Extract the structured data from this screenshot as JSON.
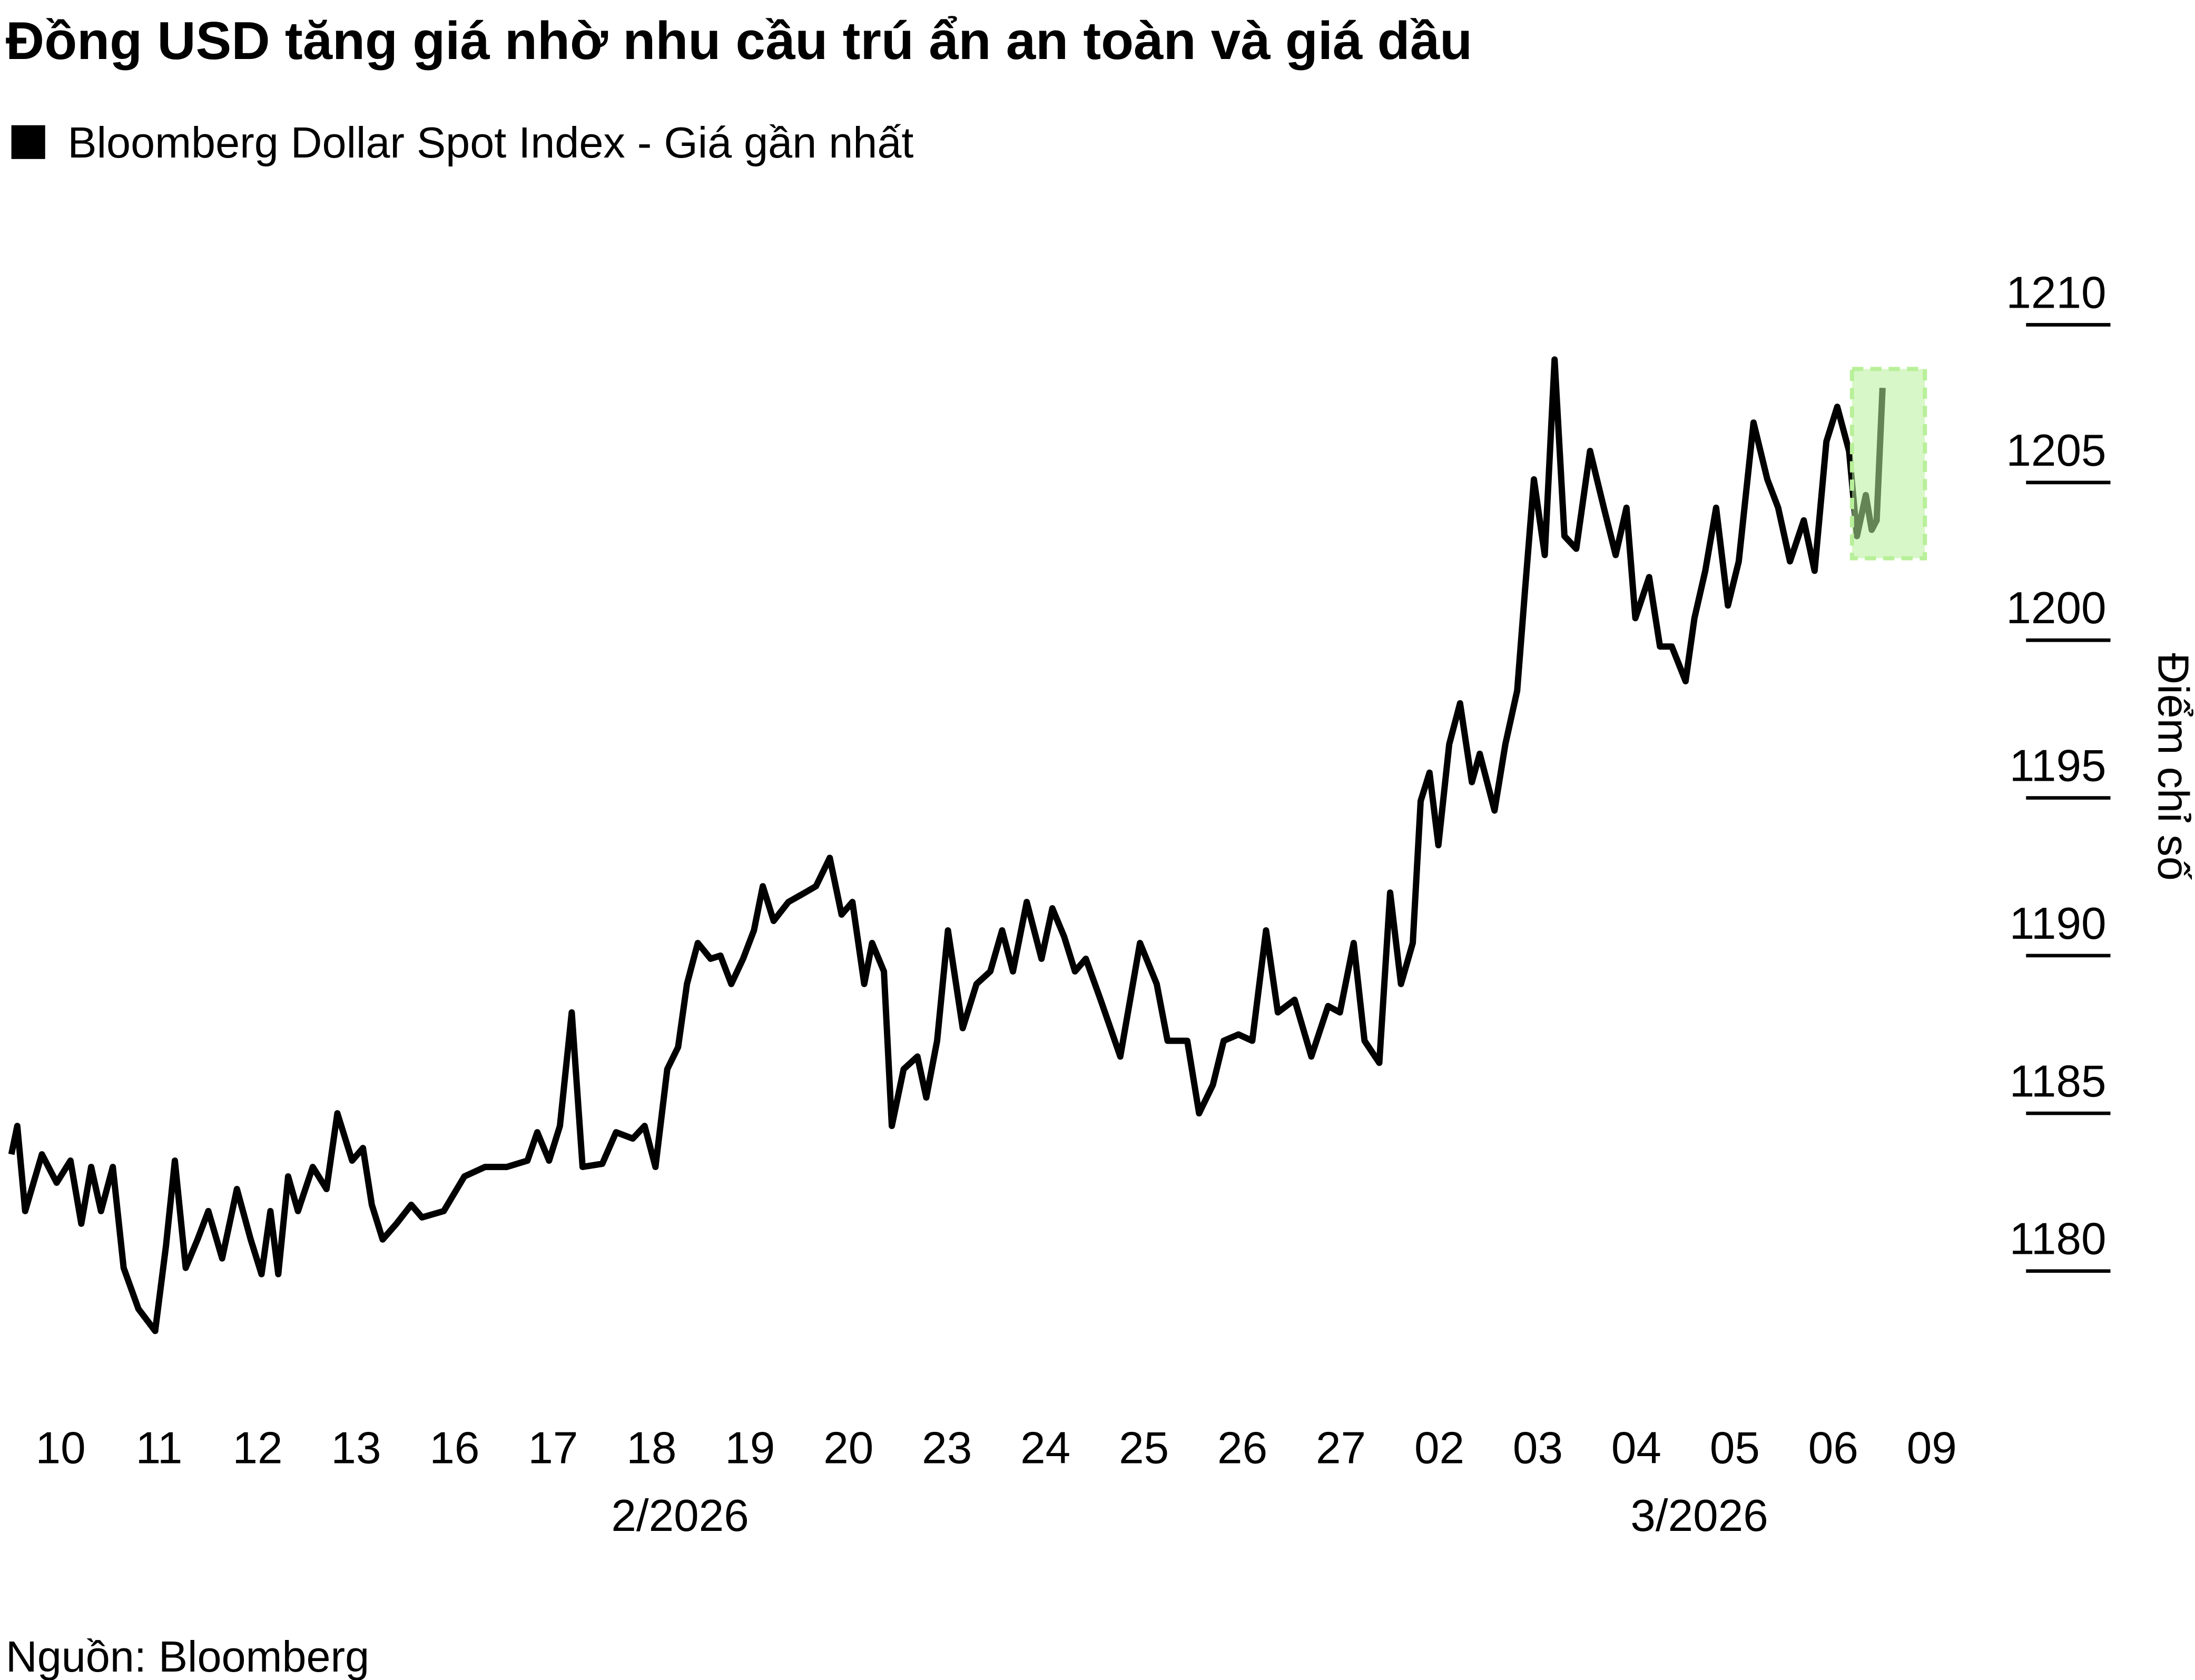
{
  "chart_data": {
    "type": "line",
    "title": "Đồng USD tăng giá nhờ nhu cầu trú ẩn an toàn và giá dầu",
    "y_label": "Điểm chỉ số",
    "source": "Nguồn: Bloomberg",
    "xlim": [
      0,
      20
    ],
    "xticks": [
      {
        "value": 0.5,
        "label": "10"
      },
      {
        "value": 1.5,
        "label": "11"
      },
      {
        "value": 2.5,
        "label": "12"
      },
      {
        "value": 3.5,
        "label": "13"
      },
      {
        "value": 4.5,
        "label": "16"
      },
      {
        "value": 5.5,
        "label": "17"
      },
      {
        "value": 6.5,
        "label": "18"
      },
      {
        "value": 7.5,
        "label": "19"
      },
      {
        "value": 8.5,
        "label": "20"
      },
      {
        "value": 9.5,
        "label": "23"
      },
      {
        "value": 10.5,
        "label": "24"
      },
      {
        "value": 11.5,
        "label": "25"
      },
      {
        "value": 12.5,
        "label": "26"
      },
      {
        "value": 13.5,
        "label": "27"
      },
      {
        "value": 14.5,
        "label": "02"
      },
      {
        "value": 15.5,
        "label": "03"
      },
      {
        "value": 16.5,
        "label": "04"
      },
      {
        "value": 17.5,
        "label": "05"
      },
      {
        "value": 18.5,
        "label": "06"
      },
      {
        "value": 19.5,
        "label": "09"
      }
    ],
    "ylim": [
      1176,
      1212
    ],
    "yticks": [
      1180,
      1185,
      1190,
      1195,
      1200,
      1205,
      1210
    ],
    "annotations": [
      {
        "text": "2/2026",
        "x": 6.79
      },
      {
        "text": "3/2026",
        "x": 17.14
      }
    ],
    "highlight": {
      "x": [
        18.69,
        19.43
      ],
      "y": [
        1202.6,
        1208.6
      ],
      "color": "#b8f09a"
    },
    "series": [
      {
        "name": "Bloomberg Dollar Spot Index - Giá gần nhất",
        "color": "#000000",
        "x": [
          0.0,
          0.06,
          0.14,
          0.31,
          0.46,
          0.6,
          0.71,
          0.81,
          0.91,
          1.03,
          1.14,
          1.29,
          1.46,
          1.57,
          1.66,
          1.77,
          1.89,
          2.0,
          2.14,
          2.29,
          2.43,
          2.54,
          2.63,
          2.71,
          2.81,
          2.91,
          3.06,
          3.2,
          3.31,
          3.46,
          3.57,
          3.66,
          3.77,
          3.91,
          4.06,
          4.17,
          4.39,
          4.6,
          4.81,
          5.03,
          5.24,
          5.34,
          5.46,
          5.57,
          5.69,
          5.8,
          6.0,
          6.14,
          6.31,
          6.43,
          6.54,
          6.66,
          6.77,
          6.86,
          6.97,
          7.1,
          7.2,
          7.31,
          7.43,
          7.54,
          7.63,
          7.74,
          7.89,
          8.06,
          8.17,
          8.31,
          8.43,
          8.54,
          8.66,
          8.74,
          8.86,
          8.94,
          9.06,
          9.2,
          9.29,
          9.4,
          9.51,
          9.66,
          9.8,
          9.94,
          10.06,
          10.17,
          10.31,
          10.46,
          10.57,
          10.69,
          10.8,
          10.91,
          11.06,
          11.26,
          11.46,
          11.63,
          11.74,
          11.94,
          12.06,
          12.2,
          12.31,
          12.46,
          12.6,
          12.74,
          12.86,
          13.03,
          13.2,
          13.37,
          13.49,
          13.63,
          13.74,
          13.89,
          14.0,
          14.11,
          14.23,
          14.31,
          14.4,
          14.49,
          14.6,
          14.71,
          14.83,
          14.91,
          15.06,
          15.17,
          15.29,
          15.37,
          15.46,
          15.57,
          15.67,
          15.77,
          15.89,
          16.03,
          16.17,
          16.29,
          16.4,
          16.49,
          16.63,
          16.74,
          16.86,
          17.0,
          17.09,
          17.2,
          17.31,
          17.43,
          17.54,
          17.69,
          17.83,
          17.94,
          18.06,
          18.2,
          18.31,
          18.43,
          18.54,
          18.66,
          18.74,
          18.83,
          18.89,
          18.94,
          19.0
        ],
        "values": [
          1183.7,
          1184.6,
          1181.9,
          1183.7,
          1182.8,
          1183.5,
          1181.5,
          1183.3,
          1181.9,
          1183.3,
          1180.1,
          1178.8,
          1178.1,
          1180.8,
          1183.5,
          1180.1,
          1181.0,
          1181.9,
          1180.4,
          1182.6,
          1181.0,
          1179.9,
          1181.9,
          1179.9,
          1183.0,
          1181.9,
          1183.3,
          1182.6,
          1185.0,
          1183.5,
          1183.9,
          1182.1,
          1181.0,
          1181.5,
          1182.1,
          1181.7,
          1181.9,
          1183.0,
          1183.3,
          1183.3,
          1183.5,
          1184.4,
          1183.5,
          1184.6,
          1188.2,
          1183.3,
          1183.4,
          1184.4,
          1184.2,
          1184.6,
          1183.3,
          1186.4,
          1187.1,
          1189.1,
          1190.4,
          1189.9,
          1190.0,
          1189.1,
          1189.9,
          1190.8,
          1192.2,
          1191.1,
          1191.7,
          1192.0,
          1192.2,
          1193.1,
          1191.3,
          1191.7,
          1189.1,
          1190.4,
          1189.5,
          1184.6,
          1186.4,
          1186.8,
          1185.5,
          1187.3,
          1190.8,
          1187.7,
          1189.1,
          1189.5,
          1190.8,
          1189.5,
          1191.7,
          1189.9,
          1191.5,
          1190.6,
          1189.5,
          1189.9,
          1188.6,
          1186.8,
          1190.4,
          1189.1,
          1187.3,
          1187.3,
          1185.0,
          1185.9,
          1187.3,
          1187.5,
          1187.3,
          1190.8,
          1188.2,
          1188.6,
          1186.8,
          1188.4,
          1188.2,
          1190.4,
          1187.3,
          1186.6,
          1192.0,
          1189.1,
          1190.4,
          1194.9,
          1195.8,
          1193.5,
          1196.7,
          1198.0,
          1195.5,
          1196.4,
          1194.6,
          1196.7,
          1198.4,
          1201.6,
          1205.1,
          1202.7,
          1208.9,
          1203.3,
          1202.9,
          1206.0,
          1204.2,
          1202.7,
          1204.2,
          1200.7,
          1202.0,
          1199.8,
          1199.8,
          1198.7,
          1200.7,
          1202.2,
          1204.2,
          1201.1,
          1202.5,
          1206.9,
          1205.1,
          1204.2,
          1202.5,
          1203.8,
          1202.2,
          1206.3,
          1207.4,
          1206.0,
          1203.3,
          1204.6,
          1203.5,
          1203.8,
          1208.0
        ]
      }
    ]
  }
}
